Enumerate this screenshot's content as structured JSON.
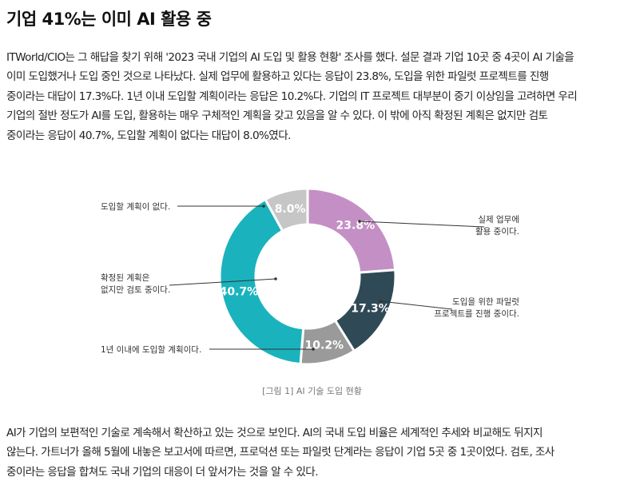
{
  "article": {
    "title": "기업 41%는 이미 AI 활용 중",
    "paragraph1": [
      "ITWorld/CIO는 그 해답을 찾기 위해 '2023 국내 기업의 AI 도입 및 활용 현황' 조사를 했다. 설문 결과 기업 10곳 중 4곳이 AI 기술을",
      "이미 도입했거나 도입 중인 것으로 나타났다. 실제 업무에 활용하고 있다는 응답이 23.8%, 도입을 위한 파일럿 프로젝트를 진행",
      "중이라는 대답이 17.3%다. 1년 이내 도입할 계획이라는 응답은 10.2%다. 기업의 IT 프로젝트 대부분이 중기 이상임을 고려하면 우리",
      "기업의 절반 정도가 AI를 도입, 활용하는 매우 구체적인 계획을 갖고 있음을 알 수 있다. 이 밖에 아직 확정된 계획은 없지만 검토",
      "중이라는 응답이 40.7%, 도입할 계획이 없다는 대답이 8.0%였다."
    ],
    "caption": "[그림 1] AI 기술 도입 현황",
    "paragraph2": [
      "AI가 기업의 보편적인 기술로 계속해서 확산하고 있는 것으로 보인다. AI의 국내 도입 비율은 세계적인 추세와 비교해도 뒤지지",
      "않는다. 가트너가 올해 5월에 내놓은 보고서에 따르면, 프로덕션 또는 파일럿 단계라는 응답이 기업 5곳 중 1곳이었다. 검토, 조사",
      "중이라는 응답을 합쳐도 국내 기업의 대응이 더 앞서가는 것을 알 수 있다."
    ]
  },
  "chart_data": {
    "type": "pie",
    "variant": "donut",
    "title": "",
    "categories": [
      "실제 업무에 활용 중이다.",
      "도입을 위한 파일럿 프로젝트를 진행 중이다.",
      "1년 이내에 도입할 계획이다.",
      "확정된 계획은 없지만 검토 중이다.",
      "도입할 계획이 없다."
    ],
    "values": [
      23.8,
      17.3,
      10.2,
      40.7,
      8.0
    ],
    "value_labels": [
      "23.8%",
      "17.3%",
      "10.2%",
      "40.7%",
      "8.0%"
    ],
    "label_lines": [
      [
        "실제 업무에",
        "활용 중이다."
      ],
      [
        "도입을 위한 파일럿",
        "프로젝트를 진행 중이다."
      ],
      [
        "1년 이내에 도입할 계획이다."
      ],
      [
        "확정된 계획은",
        "없지만 검토 중이다."
      ],
      [
        "도입할 계획이 없다."
      ]
    ],
    "colors": [
      "#c48fc4",
      "#2f4a56",
      "#9a9a9a",
      "#1ab3bd",
      "#c6c6c6"
    ],
    "start_angle_deg": 0,
    "direction": "clockwise",
    "legend": "none"
  }
}
